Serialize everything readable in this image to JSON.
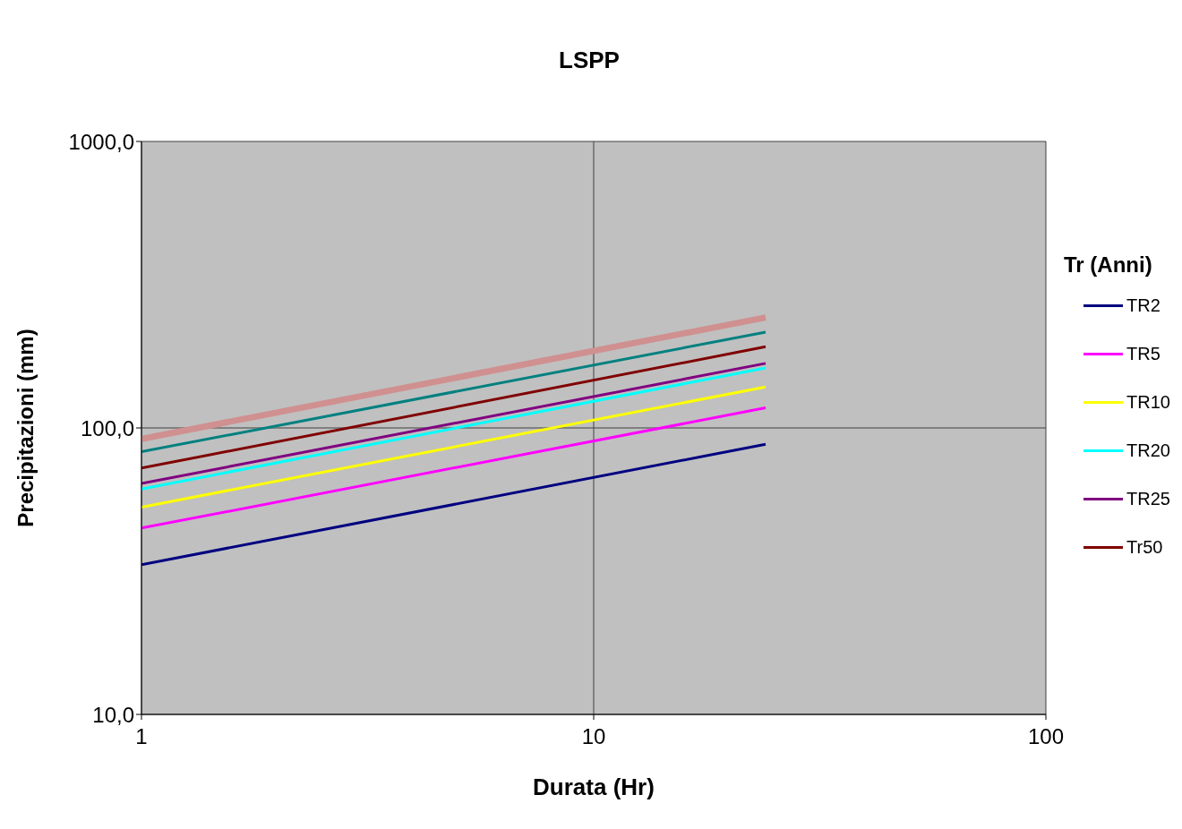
{
  "chart_data": {
    "type": "line",
    "title": "LSPP",
    "xlabel": "Durata (Hr)",
    "ylabel": "Precipitazioni (mm)",
    "legend_title": "Tr (Anni)",
    "x": [
      1,
      24
    ],
    "series": [
      {
        "name": "TR2",
        "color": "#000080",
        "values": [
          33.3,
          87.7
        ]
      },
      {
        "name": "TR5",
        "color": "#ff00ff",
        "values": [
          44.7,
          117.5
        ]
      },
      {
        "name": "TR10",
        "color": "#ffff00",
        "values": [
          52.9,
          139
        ]
      },
      {
        "name": "TR20",
        "color": "#00ffff",
        "values": [
          61.2,
          162
        ]
      },
      {
        "name": "TR25",
        "color": "#800080",
        "values": [
          64,
          168
        ]
      },
      {
        "name": "Tr50",
        "color": "#800000",
        "values": [
          72.4,
          192
        ]
      },
      {
        "color": "#008080",
        "values": [
          82.6,
          216
        ]
      },
      {
        "color": "#d09090",
        "values": [
          91.6,
          243
        ]
      }
    ],
    "log": "xy",
    "xlim": [
      1,
      100
    ],
    "xticks": [
      1,
      10,
      100
    ],
    "ylim": [
      10,
      1000
    ],
    "yticks": [
      {
        "value": 10,
        "label": "10,0"
      },
      {
        "value": 100,
        "label": "100,0"
      },
      {
        "value": 1000,
        "label": "1000,0"
      }
    ],
    "grid": true,
    "legend": "right",
    "marker": "none",
    "line_style": "solid"
  }
}
